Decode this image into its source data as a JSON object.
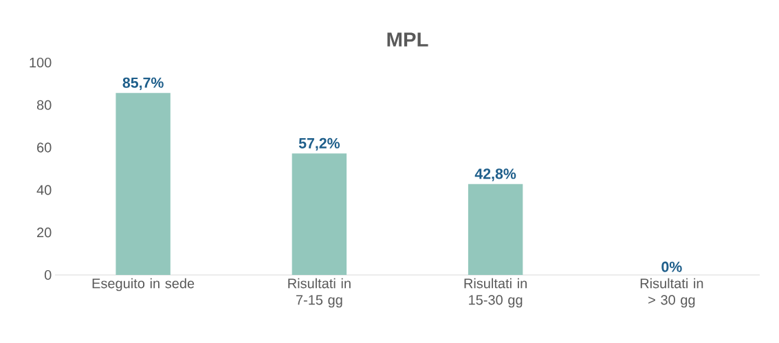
{
  "chart_data": {
    "type": "bar",
    "title": "MPL",
    "categories": [
      "Eseguito in sede",
      "Risultati in 7-15 gg",
      "Risultati in 15-30 gg",
      "Risultati in > 30 gg"
    ],
    "values": [
      85.7,
      57.2,
      42.8,
      0
    ],
    "value_labels": [
      "85,7%",
      "57,2%",
      "42,8%",
      "0%"
    ],
    "color": "#93c7bc",
    "ylim": [
      0,
      100
    ],
    "yticks": [
      0,
      20,
      40,
      60,
      80,
      100
    ]
  }
}
